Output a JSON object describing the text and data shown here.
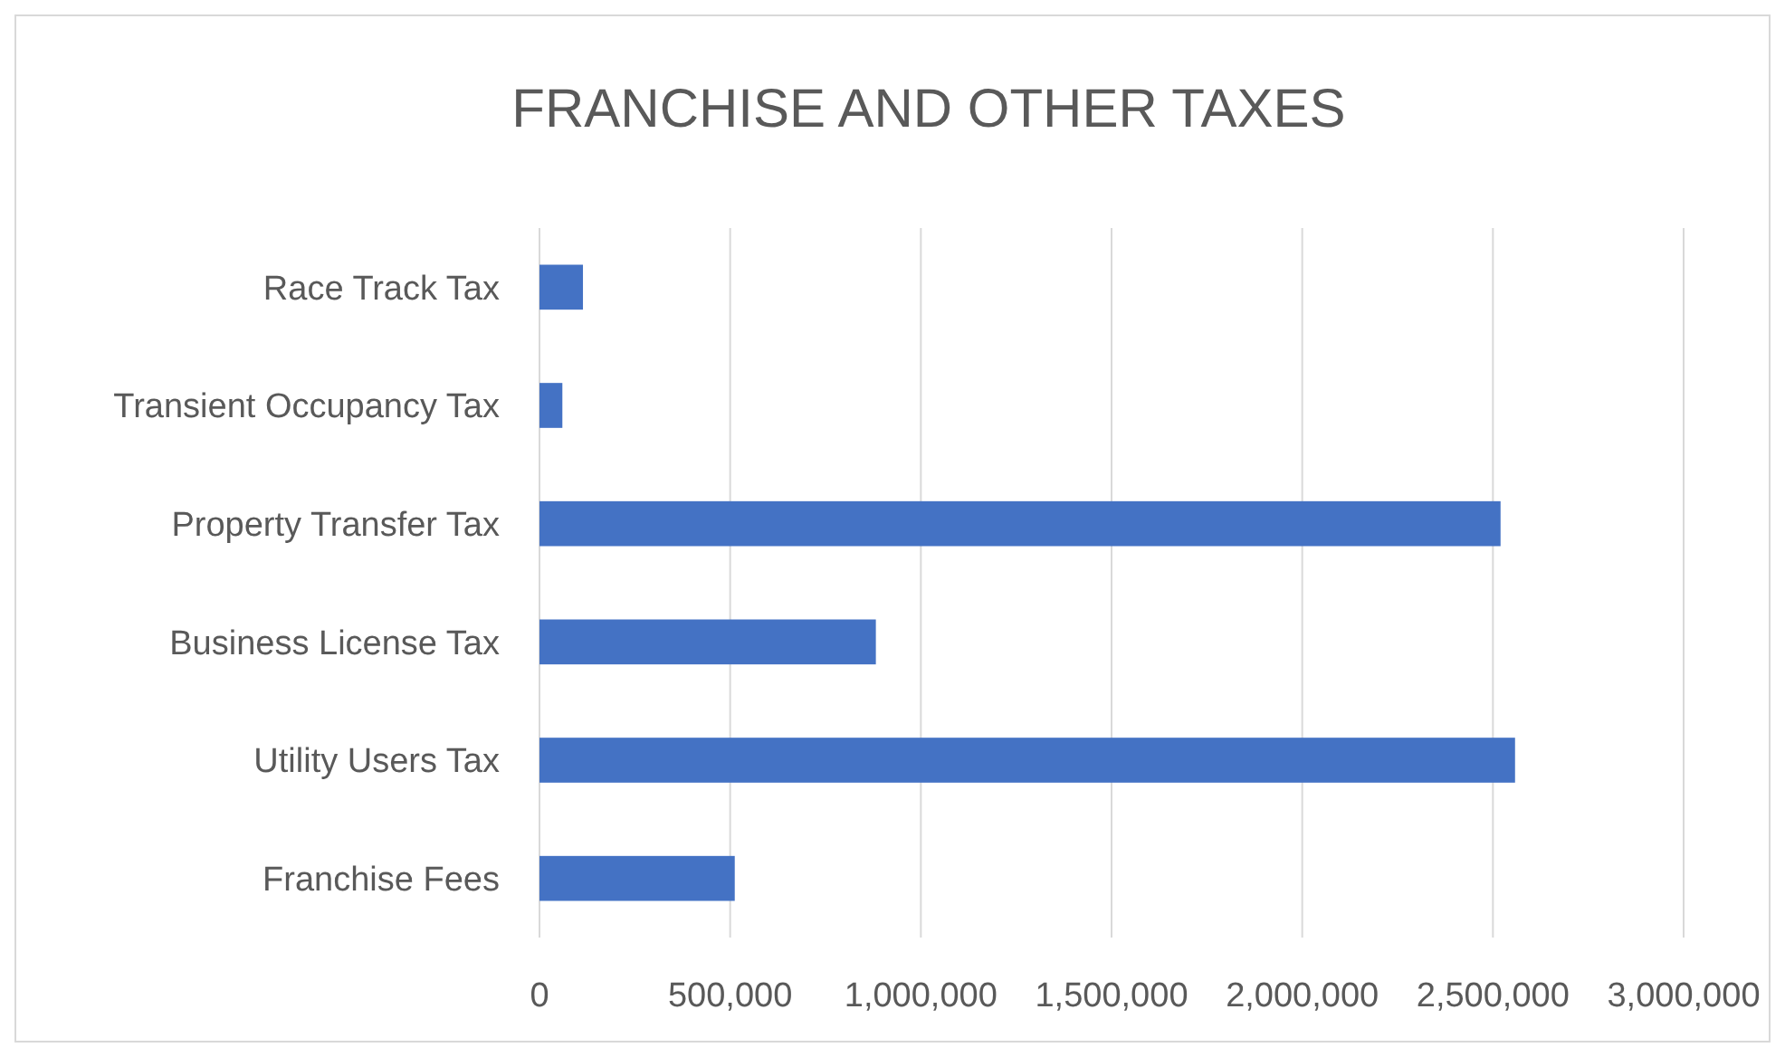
{
  "chart_data": {
    "type": "bar",
    "title": "FRANCHISE AND OTHER TAXES",
    "orientation": "horizontal",
    "categories": [
      "Race Track Tax",
      "Transient Occupancy Tax",
      "Property Transfer Tax",
      "Business License Tax",
      "Utility Users Tax",
      "Franchise Fees"
    ],
    "values": [
      114000,
      60000,
      2520000,
      882000,
      2558000,
      512000
    ],
    "color": "#4472c4",
    "xlim": [
      0,
      3000000
    ],
    "xticks": [
      {
        "value": 0,
        "label": "0"
      },
      {
        "value": 500000,
        "label": "500,000"
      },
      {
        "value": 1000000,
        "label": "1,000,000"
      },
      {
        "value": 1500000,
        "label": "1,500,000"
      },
      {
        "value": 2000000,
        "label": "2,000,000"
      },
      {
        "value": 2500000,
        "label": "2,500,000"
      },
      {
        "value": 3000000,
        "label": "3,000,000"
      }
    ],
    "grid": "x"
  }
}
